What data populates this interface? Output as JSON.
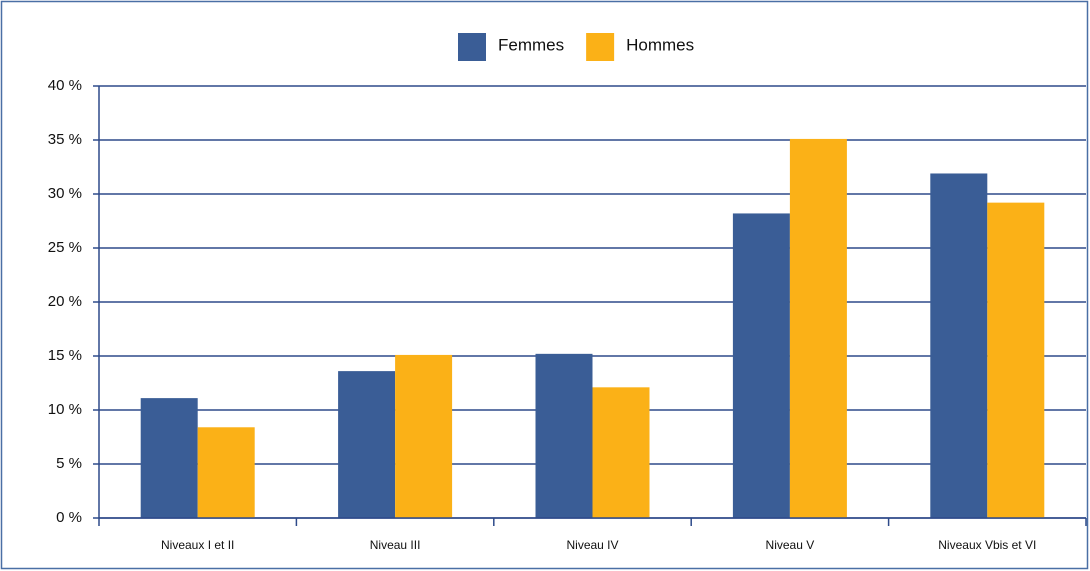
{
  "chart_data": {
    "type": "bar",
    "categories": [
      "Niveaux I et II",
      "Niveau III",
      "Niveau IV",
      "Niveau V",
      "Niveaux Vbis et VI"
    ],
    "series": [
      {
        "name": "Femmes",
        "color": "#3a5d96",
        "values": [
          11.1,
          13.6,
          15.2,
          28.2,
          31.9
        ]
      },
      {
        "name": "Hommes",
        "color": "#fbb117",
        "values": [
          8.4,
          15.1,
          12.1,
          35.1,
          29.2
        ]
      }
    ],
    "ylim": [
      0,
      40
    ],
    "yticks": [
      {
        "value": 0,
        "label": "0 %"
      },
      {
        "value": 5,
        "label": "5 %"
      },
      {
        "value": 10,
        "label": "10 %"
      },
      {
        "value": 15,
        "label": "15 %"
      },
      {
        "value": 20,
        "label": "20 %"
      },
      {
        "value": 25,
        "label": "25 %"
      },
      {
        "value": 30,
        "label": "30 %"
      },
      {
        "value": 35,
        "label": "35 %"
      },
      {
        "value": 40,
        "label": "40 %"
      }
    ],
    "grid": true,
    "legend": "top"
  }
}
